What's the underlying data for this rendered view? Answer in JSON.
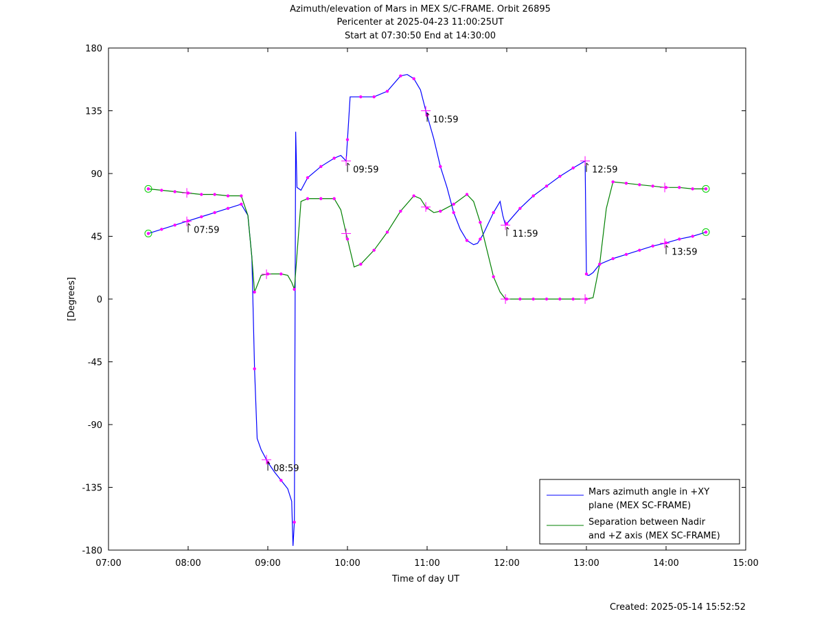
{
  "chart_data": {
    "type": "line",
    "title_lines": [
      "Azimuth/elevation of Mars in MEX S/C-FRAME.  Orbit 26895",
      "Pericenter at 2025-04-23 11:00:25UT",
      "Start at 07:30:50 End at 14:30:00"
    ],
    "xlabel": "Time of day UT",
    "ylabel": "[Degrees]",
    "created": "Created: 2025-05-14 15:52:52",
    "xlim": [
      "07:00",
      "15:00"
    ],
    "ylim": [
      -180,
      180
    ],
    "xticks": [
      "07:00",
      "08:00",
      "09:00",
      "10:00",
      "11:00",
      "12:00",
      "13:00",
      "14:00",
      "15:00"
    ],
    "yticks": [
      "180",
      "135",
      "90",
      "45",
      "0",
      "-45",
      "-90",
      "-135",
      "-180"
    ],
    "grid": false,
    "legend_position": "bottom-right",
    "colors": {
      "azimuth": "#0000ff",
      "separation": "#008000",
      "marker": "#ff00ff",
      "endpoint": "#00cc00"
    },
    "series": [
      {
        "name": "Mars azimuth angle in +XY plane (MEX SC-FRAME)",
        "legend_lines": [
          "Mars azimuth angle in +XY",
          "plane (MEX SC-FRAME)"
        ],
        "x": [
          "07:30",
          "07:40",
          "07:50",
          "08:00",
          "08:10",
          "08:20",
          "08:30",
          "08:40",
          "08:45",
          "08:48",
          "08:50",
          "08:52",
          "08:55",
          "09:00",
          "09:05",
          "09:10",
          "09:15",
          "09:18",
          "09:19",
          "09:20",
          "09:21",
          "09:22",
          "09:25",
          "09:30",
          "09:40",
          "09:50",
          "09:55",
          "09:59",
          "10:02",
          "10:05",
          "10:10",
          "10:20",
          "10:30",
          "10:40",
          "10:45",
          "10:50",
          "10:55",
          "10:59",
          "11:05",
          "11:10",
          "11:15",
          "11:20",
          "11:25",
          "11:30",
          "11:35",
          "11:38",
          "11:42",
          "11:45",
          "11:50",
          "11:55",
          "11:57",
          "11:59",
          "12:10",
          "12:20",
          "12:30",
          "12:40",
          "12:50",
          "12:59",
          "13:00",
          "13:01",
          "13:02",
          "13:05",
          "13:10",
          "13:20",
          "13:30",
          "13:40",
          "13:50",
          "13:59",
          "14:10",
          "14:20",
          "14:30"
        ],
        "y": [
          47,
          50,
          53,
          56,
          59,
          62,
          65,
          68,
          60,
          30,
          -50,
          -100,
          -108,
          -117,
          -124,
          -130,
          -136,
          -145,
          -177,
          -160,
          120,
          80,
          78,
          87,
          95,
          101,
          103,
          99,
          145,
          145,
          145,
          145,
          149,
          160,
          161,
          158,
          150,
          135,
          115,
          95,
          80,
          62,
          50,
          42,
          39,
          40,
          46,
          52,
          62,
          70,
          60,
          53,
          65,
          74,
          81,
          88,
          94,
          99,
          18,
          17,
          17,
          19,
          25,
          29,
          32,
          35,
          38,
          40,
          43,
          45,
          48
        ]
      },
      {
        "name": "Separation between Nadir and +Z axis (MEX SC-FRAME)",
        "legend_lines": [
          "Separation between Nadir",
          "and +Z axis (MEX SC-FRAME)"
        ],
        "x": [
          "07:30",
          "07:40",
          "07:50",
          "08:00",
          "08:10",
          "08:20",
          "08:30",
          "08:40",
          "08:45",
          "08:48",
          "08:50",
          "08:55",
          "09:00",
          "09:10",
          "09:15",
          "09:18",
          "09:20",
          "09:25",
          "09:30",
          "09:40",
          "09:50",
          "09:55",
          "09:59",
          "10:05",
          "10:10",
          "10:20",
          "10:30",
          "10:40",
          "10:50",
          "10:55",
          "10:59",
          "11:05",
          "11:10",
          "11:20",
          "11:30",
          "11:35",
          "11:40",
          "11:50",
          "11:55",
          "11:59",
          "12:10",
          "12:20",
          "12:30",
          "12:40",
          "12:50",
          "12:59",
          "13:00",
          "13:05",
          "13:10",
          "13:15",
          "13:20",
          "13:30",
          "13:40",
          "13:50",
          "13:59",
          "14:10",
          "14:20",
          "14:30"
        ],
        "y": [
          79,
          78,
          77,
          76,
          75,
          75,
          74,
          74,
          60,
          30,
          5,
          17,
          18,
          18,
          17,
          12,
          7,
          70,
          72,
          72,
          72,
          64,
          47,
          23,
          25,
          35,
          48,
          63,
          74,
          72,
          66,
          62,
          63,
          68,
          75,
          70,
          55,
          16,
          5,
          0,
          0,
          0,
          0,
          0,
          0,
          0,
          0,
          1,
          25,
          65,
          84,
          83,
          82,
          81,
          80,
          80,
          79,
          79
        ]
      }
    ],
    "markers": [
      {
        "x": "07:59",
        "label": "07:59"
      },
      {
        "x": "08:59",
        "label": "08:59"
      },
      {
        "x": "09:59",
        "label": "09:59"
      },
      {
        "x": "10:59",
        "label": "10:59"
      },
      {
        "x": "11:59",
        "label": "11:59"
      },
      {
        "x": "12:59",
        "label": "12:59"
      },
      {
        "x": "13:59",
        "label": "13:59"
      }
    ]
  }
}
